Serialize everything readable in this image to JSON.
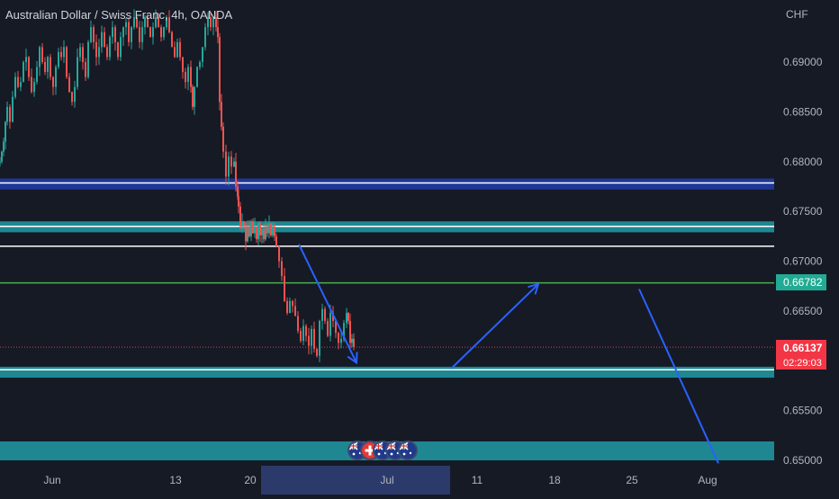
{
  "title": {
    "symbol": "Australian Dollar / Swiss Franc, 4h, OANDA"
  },
  "axis": {
    "unit": "CHF"
  },
  "current_price": {
    "value": "0.66137",
    "countdown": "02:29:03",
    "color": "#f23645"
  },
  "level_marker": {
    "value": "0.66782",
    "color": "#22ab94"
  },
  "colors": {
    "background": "#161a25",
    "up": "#26a69a",
    "down": "#ef5350",
    "zone_teal": "#1e8791",
    "zone_blue": "#1e3799",
    "arrow": "#2962ff"
  },
  "icons": [
    "australia-flag-icon",
    "switzerland-flag-icon"
  ],
  "chart_data": {
    "type": "candlestick",
    "title": "Australian Dollar / Swiss Franc, 4h, OANDA",
    "ylabel": "CHF",
    "ylim": [
      0.65,
      0.6955
    ],
    "y_ticks": [
      0.65,
      0.655,
      0.66,
      0.665,
      0.67,
      0.675,
      0.68,
      0.685,
      0.69
    ],
    "y_tick_labels": [
      "0.65000",
      "0.65500",
      "0.66000",
      "0.66500",
      "0.67000",
      "0.67500",
      "0.68000",
      "0.68500",
      "0.69000"
    ],
    "x_tick_labels": [
      "Jun",
      "13",
      "20",
      "Jul",
      "11",
      "18",
      "25",
      "Aug"
    ],
    "x_highlight_range": [
      "20",
      "Jul"
    ],
    "close_path": [
      [
        0,
        0.68
      ],
      [
        2,
        0.681
      ],
      [
        4,
        0.682
      ],
      [
        6,
        0.684
      ],
      [
        8,
        0.6855
      ],
      [
        11,
        0.684
      ],
      [
        14,
        0.6865
      ],
      [
        17,
        0.6885
      ],
      [
        20,
        0.6875
      ],
      [
        23,
        0.688
      ],
      [
        26,
        0.69
      ],
      [
        29,
        0.6905
      ],
      [
        32,
        0.6885
      ],
      [
        35,
        0.687
      ],
      [
        38,
        0.688
      ],
      [
        41,
        0.6895
      ],
      [
        44,
        0.6915
      ],
      [
        47,
        0.69
      ],
      [
        50,
        0.689
      ],
      [
        53,
        0.6905
      ],
      [
        56,
        0.6885
      ],
      [
        59,
        0.6875
      ],
      [
        62,
        0.6895
      ],
      [
        65,
        0.691
      ],
      [
        68,
        0.6905
      ],
      [
        71,
        0.6915
      ],
      [
        74,
        0.6885
      ],
      [
        77,
        0.687
      ],
      [
        80,
        0.686
      ],
      [
        83,
        0.6875
      ],
      [
        86,
        0.6905
      ],
      [
        89,
        0.6915
      ],
      [
        92,
        0.69
      ],
      [
        95,
        0.6885
      ],
      [
        98,
        0.692
      ],
      [
        101,
        0.6935
      ],
      [
        104,
        0.692
      ],
      [
        107,
        0.6905
      ],
      [
        110,
        0.6915
      ],
      [
        113,
        0.693
      ],
      [
        116,
        0.6915
      ],
      [
        119,
        0.6905
      ],
      [
        122,
        0.6925
      ],
      [
        125,
        0.6935
      ],
      [
        128,
        0.692
      ],
      [
        131,
        0.6905
      ],
      [
        134,
        0.6925
      ],
      [
        137,
        0.6935
      ],
      [
        140,
        0.694
      ],
      [
        143,
        0.692
      ],
      [
        146,
        0.6935
      ],
      [
        149,
        0.6945
      ],
      [
        152,
        0.6935
      ],
      [
        155,
        0.692
      ],
      [
        158,
        0.6935
      ],
      [
        161,
        0.6945
      ],
      [
        164,
        0.6935
      ],
      [
        167,
        0.6925
      ],
      [
        170,
        0.6935
      ],
      [
        173,
        0.6945
      ],
      [
        176,
        0.6935
      ],
      [
        179,
        0.6925
      ],
      [
        182,
        0.6935
      ],
      [
        185,
        0.6945
      ],
      [
        188,
        0.693
      ],
      [
        191,
        0.6915
      ],
      [
        194,
        0.6905
      ],
      [
        197,
        0.692
      ],
      [
        200,
        0.6905
      ],
      [
        203,
        0.689
      ],
      [
        206,
        0.688
      ],
      [
        209,
        0.6895
      ],
      [
        212,
        0.6875
      ],
      [
        214,
        0.6855
      ],
      [
        216,
        0.6875
      ],
      [
        219,
        0.6895
      ],
      [
        222,
        0.69
      ],
      [
        225,
        0.6915
      ],
      [
        228,
        0.6935
      ],
      [
        231,
        0.6945
      ],
      [
        234,
        0.6935
      ],
      [
        237,
        0.6945
      ],
      [
        240,
        0.6935
      ],
      [
        242,
        0.6925
      ],
      [
        244,
        0.686
      ],
      [
        246,
        0.6835
      ],
      [
        248,
        0.681
      ],
      [
        251,
        0.6785
      ],
      [
        254,
        0.6805
      ],
      [
        257,
        0.6795
      ],
      [
        260,
        0.68
      ],
      [
        262,
        0.6775
      ],
      [
        264,
        0.6765
      ],
      [
        265,
        0.6755
      ],
      [
        267,
        0.6735
      ],
      [
        269,
        0.674
      ],
      [
        271,
        0.6735
      ],
      [
        273,
        0.672
      ],
      [
        275,
        0.6735
      ],
      [
        277,
        0.6725
      ],
      [
        279,
        0.674
      ],
      [
        281,
        0.6728
      ],
      [
        283,
        0.6735
      ],
      [
        285,
        0.6722
      ],
      [
        287,
        0.6738
      ],
      [
        289,
        0.6726
      ],
      [
        291,
        0.6732
      ],
      [
        293,
        0.6722
      ],
      [
        295,
        0.6735
      ],
      [
        297,
        0.6728
      ],
      [
        299,
        0.6738
      ],
      [
        301,
        0.6726
      ],
      [
        303,
        0.6735
      ],
      [
        305,
        0.6725
      ],
      [
        307,
        0.6715
      ],
      [
        310,
        0.67
      ],
      [
        313,
        0.6685
      ],
      [
        316,
        0.666
      ],
      [
        319,
        0.6648
      ],
      [
        322,
        0.666
      ],
      [
        325,
        0.6655
      ],
      [
        328,
        0.6645
      ],
      [
        331,
        0.663
      ],
      [
        334,
        0.662
      ],
      [
        337,
        0.6635
      ],
      [
        340,
        0.6625
      ],
      [
        343,
        0.6615
      ],
      [
        346,
        0.6632
      ],
      [
        349,
        0.6612
      ],
      [
        352,
        0.6605
      ],
      [
        355,
        0.664
      ],
      [
        358,
        0.6652
      ],
      [
        361,
        0.664
      ],
      [
        364,
        0.6625
      ],
      [
        367,
        0.6648
      ],
      [
        370,
        0.664
      ],
      [
        373,
        0.6628
      ],
      [
        376,
        0.6618
      ],
      [
        379,
        0.6622
      ],
      [
        382,
        0.6638
      ],
      [
        385,
        0.6648
      ],
      [
        387,
        0.664
      ],
      [
        389,
        0.6618
      ],
      [
        391,
        0.6622
      ],
      [
        393,
        0.6614
      ]
    ],
    "zones": [
      {
        "from": 0.6772,
        "to": 0.6783,
        "color": "#1e3799"
      },
      {
        "from": 0.6729,
        "to": 0.674,
        "color": "#1e8791"
      },
      {
        "from": 0.6583,
        "to": 0.6594,
        "color": "#1e8791"
      },
      {
        "from": 0.65,
        "to": 0.6519,
        "color": "#1e8791"
      }
    ],
    "horizontal_lines": [
      {
        "value": 0.67785,
        "color": "#ffffff"
      },
      {
        "value": 0.6735,
        "color": "#ffffff"
      },
      {
        "value": 0.6715,
        "color": "#ffffff"
      },
      {
        "value": 0.6591,
        "color": "#ffffff"
      },
      {
        "value": 0.66782,
        "color": "#4caf50"
      },
      {
        "value": 0.66137,
        "color": "#f23645",
        "dotted": true
      }
    ],
    "drawings": [
      {
        "type": "arrow",
        "from": [
          332,
          0.6717
        ],
        "to": [
          396,
          0.6598
        ]
      },
      {
        "type": "arrow",
        "from": [
          501,
          0.6592
        ],
        "to": [
          598,
          0.6677
        ]
      },
      {
        "type": "line",
        "from": [
          710,
          0.6672
        ],
        "to": [
          798,
          0.6497
        ]
      }
    ]
  }
}
